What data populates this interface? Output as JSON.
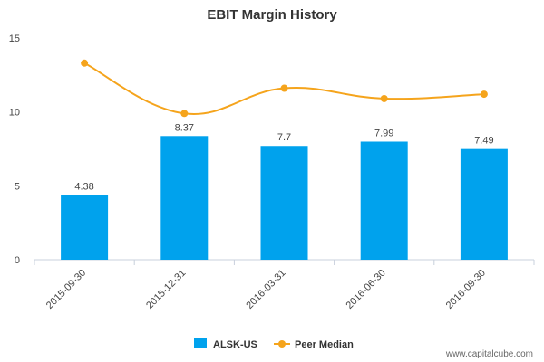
{
  "chart_data": {
    "type": "bar",
    "title": "EBIT Margin History",
    "categories": [
      "2015-09-30",
      "2015-12-31",
      "2016-03-31",
      "2016-06-30",
      "2016-09-30"
    ],
    "series": [
      {
        "name": "ALSK-US",
        "type": "bar",
        "color": "#00a2ed",
        "values": [
          4.38,
          8.37,
          7.7,
          7.99,
          7.49
        ],
        "labels": [
          "4.38",
          "8.37",
          "7.7",
          "7.99",
          "7.49"
        ]
      },
      {
        "name": "Peer Median",
        "type": "line",
        "color": "#f5a41c",
        "values": [
          13.3,
          9.9,
          11.6,
          10.9,
          11.2
        ]
      }
    ],
    "y_ticks": [
      "0",
      "5",
      "10",
      "15"
    ],
    "ylim": [
      0,
      15
    ],
    "grid": false,
    "legend": "bottom-center"
  },
  "watermark": "www.capitalcube.com"
}
